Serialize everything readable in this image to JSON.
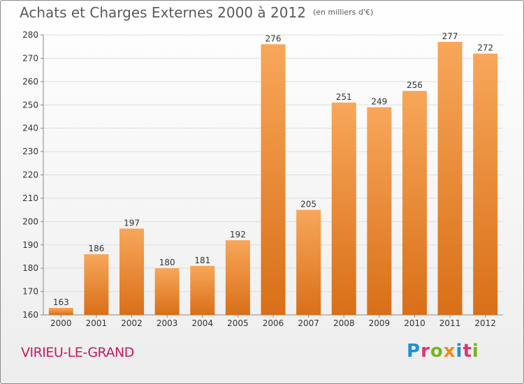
{
  "header": {
    "title": "Achats et Charges Externes 2000 à 2012",
    "unit": "(en milliers d'€)"
  },
  "footer": {
    "place": "VIRIEU-LE-GRAND",
    "logo_text": "Proxiti",
    "logo_colors": [
      "#1e8fd6",
      "#e2336f",
      "#79b51c",
      "#f08a1c",
      "#1e8fd6",
      "#e2336f",
      "#79b51c"
    ]
  },
  "colors": {
    "bar_top": "#f7a75a",
    "bar_bottom": "#d96f18",
    "place": "#c8185f",
    "title": "#5a5a5a"
  },
  "chart_data": {
    "type": "bar",
    "categories": [
      "2000",
      "2001",
      "2002",
      "2003",
      "2004",
      "2005",
      "2006",
      "2007",
      "2008",
      "2009",
      "2010",
      "2011",
      "2012"
    ],
    "values": [
      163,
      186,
      197,
      180,
      181,
      192,
      276,
      205,
      251,
      249,
      256,
      277,
      272
    ],
    "title": "Achats et Charges Externes 2000 à 2012",
    "subtitle": "(en milliers d'€)",
    "xlabel": "",
    "ylabel": "",
    "ylim": [
      160,
      280
    ],
    "yticks": [
      160,
      170,
      180,
      190,
      200,
      210,
      220,
      230,
      240,
      250,
      260,
      270,
      280
    ],
    "grid": true,
    "data_labels": true
  }
}
